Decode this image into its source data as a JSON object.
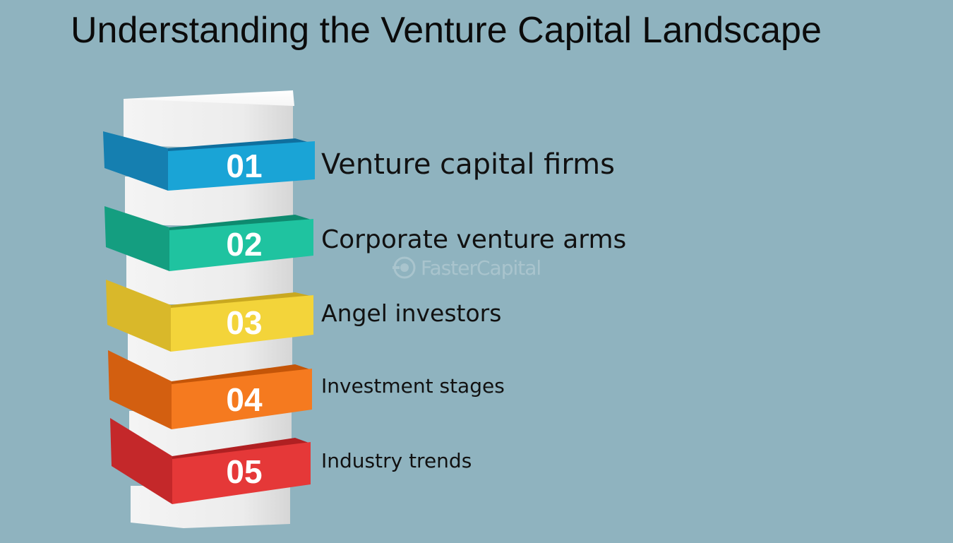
{
  "title": "Understanding the Venture Capital Landscape",
  "watermark": "FasterCapital",
  "items": [
    {
      "number": "01",
      "label": "Venture capital firms",
      "color": "#1aa4d6"
    },
    {
      "number": "02",
      "label": "Corporate venture arms",
      "color": "#1fc3a0"
    },
    {
      "number": "03",
      "label": "Angel investors",
      "color": "#f3d43a"
    },
    {
      "number": "04",
      "label": "Investment stages",
      "color": "#f57a1f"
    },
    {
      "number": "05",
      "label": "Industry trends",
      "color": "#e53838"
    }
  ]
}
